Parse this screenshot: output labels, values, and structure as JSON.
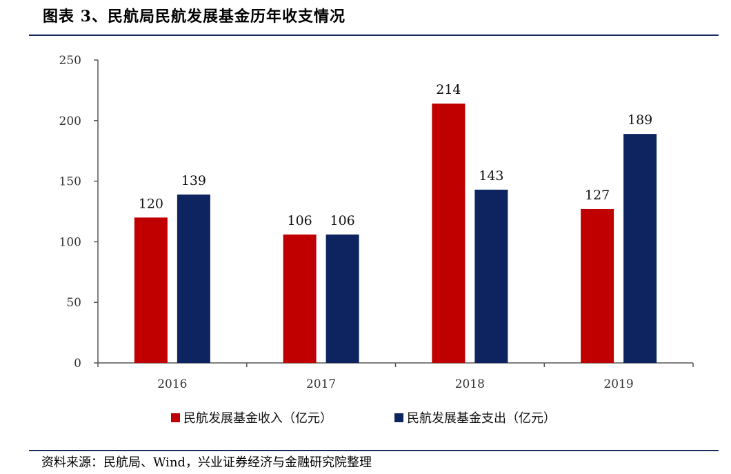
{
  "figure_title": "图表 3、民航局民航发展基金历年收支情况",
  "source_note": "资料来源：民航局、Wind，兴业证券经济与金融研究院整理",
  "colors": {
    "income": "#c00000",
    "expense": "#0d2460",
    "axis": "#555555",
    "rule": "#1a2b5a"
  },
  "chart_data": {
    "type": "bar",
    "categories": [
      "2016",
      "2017",
      "2018",
      "2019"
    ],
    "series": [
      {
        "name": "民航发展基金收入（亿元）",
        "values": [
          120,
          106,
          214,
          127
        ]
      },
      {
        "name": "民航发展基金支出（亿元）",
        "values": [
          139,
          106,
          143,
          189
        ]
      }
    ],
    "ylim": [
      0,
      250
    ],
    "yticks": [
      "0",
      "50",
      "100",
      "150",
      "200",
      "250"
    ],
    "data_labels": [
      [
        "120",
        "106",
        "214",
        "127"
      ],
      [
        "139",
        "106",
        "143",
        "189"
      ]
    ],
    "grid": false,
    "legend_position": "bottom"
  }
}
